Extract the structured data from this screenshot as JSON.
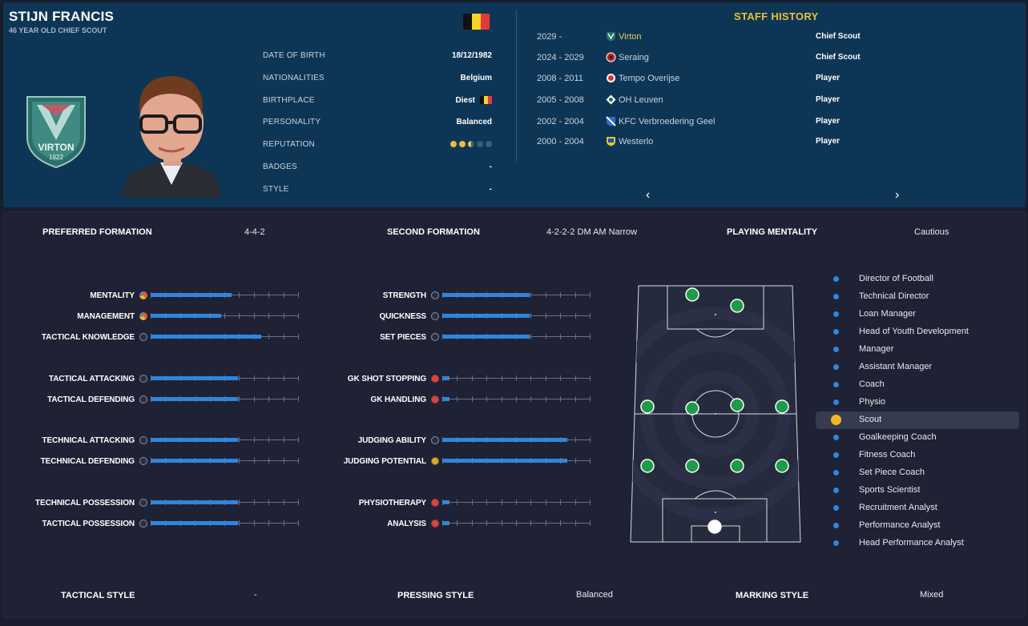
{
  "header": {
    "name": "STIJN FRANCIS",
    "subtitle": "46 YEAR OLD CHIEF SCOUT",
    "club_badge_text": "VIRTON",
    "club_badge_year": "1922",
    "info": [
      {
        "label": "DATE OF BIRTH",
        "value": "18/12/1982"
      },
      {
        "label": "NATIONALITIES",
        "value": "Belgium"
      },
      {
        "label": "BIRTHPLACE",
        "value": "Diest"
      },
      {
        "label": "PERSONALITY",
        "value": "Balanced"
      },
      {
        "label": "REPUTATION",
        "value": ""
      },
      {
        "label": "BADGES",
        "value": "-"
      },
      {
        "label": "STYLE",
        "value": "-"
      }
    ],
    "reputation_stars": 2.5
  },
  "staff_history": {
    "title": "STAFF HISTORY",
    "rows": [
      {
        "years": "2029 -",
        "club": "Virton",
        "role": "Chief Scout",
        "current": true
      },
      {
        "years": "2024 - 2029",
        "club": "Seraing",
        "role": "Chief Scout",
        "current": false
      },
      {
        "years": "2008 - 2011",
        "club": "Tempo Overijse",
        "role": "Player",
        "current": false
      },
      {
        "years": "2005 - 2008",
        "club": "OH Leuven",
        "role": "Player",
        "current": false
      },
      {
        "years": "2002 - 2004",
        "club": "KFC Verbroedering Geel",
        "role": "Player",
        "current": false
      },
      {
        "years": "2000 - 2004",
        "club": "Westerlo",
        "role": "Player",
        "current": false
      }
    ],
    "prev_arrow": "‹",
    "next_arrow": "›"
  },
  "formations": {
    "preferred_label": "PREFERRED FORMATION",
    "preferred_value": "4-4-2",
    "second_label": "SECOND FORMATION",
    "second_value": "4-2-2-2 DM AM Narrow",
    "mentality_label": "PLAYING MENTALITY",
    "mentality_value": "Cautious"
  },
  "attributes_left": [
    {
      "label": "MENTALITY",
      "value": 0.55,
      "icon": "pie-icon"
    },
    {
      "label": "MANAGEMENT",
      "value": 0.48,
      "icon": "pie-icon"
    },
    {
      "label": "TACTICAL KNOWLEDGE",
      "value": 0.75,
      "icon": "ball-icon"
    },
    {
      "label": "TACTICAL ATTACKING",
      "value": 0.59,
      "icon": "ball-icon"
    },
    {
      "label": "TACTICAL DEFENDING",
      "value": 0.59,
      "icon": "ball-icon"
    },
    {
      "label": "TECHNICAL ATTACKING",
      "value": 0.59,
      "icon": "ball-icon"
    },
    {
      "label": "TECHNICAL DEFENDING",
      "value": 0.59,
      "icon": "ball-icon"
    },
    {
      "label": "TECHNICAL POSSESSION",
      "value": 0.59,
      "icon": "ball-icon"
    },
    {
      "label": "TACTICAL POSSESSION",
      "value": 0.59,
      "icon": "ball-icon"
    }
  ],
  "attributes_mid": [
    {
      "label": "STRENGTH",
      "value": 0.59,
      "icon": "ball-icon"
    },
    {
      "label": "QUICKNESS",
      "value": 0.59,
      "icon": "ball-icon"
    },
    {
      "label": "SET PIECES",
      "value": 0.59,
      "icon": "ball-icon"
    },
    {
      "label": "GK SHOT STOPPING",
      "value": 0.05,
      "icon": "warning-icon"
    },
    {
      "label": "GK HANDLING",
      "value": 0.05,
      "icon": "warning-icon"
    },
    {
      "label": "JUDGING ABILITY",
      "value": 0.85,
      "icon": "ball-icon"
    },
    {
      "label": "JUDGING POTENTIAL",
      "value": 0.85,
      "icon": "ball-gold-icon"
    },
    {
      "label": "PHYSIOTHERAPY",
      "value": 0.05,
      "icon": "warning-icon"
    },
    {
      "label": "ANALYSIS",
      "value": 0.05,
      "icon": "warning-icon"
    }
  ],
  "positions": [
    {
      "label": "Director of Football",
      "active": false
    },
    {
      "label": "Technical Director",
      "active": false
    },
    {
      "label": "Loan Manager",
      "active": false
    },
    {
      "label": "Head of Youth Development",
      "active": false
    },
    {
      "label": "Manager",
      "active": false
    },
    {
      "label": "Assistant Manager",
      "active": false
    },
    {
      "label": "Coach",
      "active": false
    },
    {
      "label": "Physio",
      "active": false
    },
    {
      "label": "Scout",
      "active": true
    },
    {
      "label": "Goalkeeping Coach",
      "active": false
    },
    {
      "label": "Fitness Coach",
      "active": false
    },
    {
      "label": "Set Piece Coach",
      "active": false
    },
    {
      "label": "Sports Scientist",
      "active": false
    },
    {
      "label": "Recruitment Analyst",
      "active": false
    },
    {
      "label": "Performance Analyst",
      "active": false
    },
    {
      "label": "Head Performance Analyst",
      "active": false
    }
  ],
  "styles": {
    "tactical_label": "TACTICAL STYLE",
    "tactical_value": "-",
    "pressing_label": "PRESSING STYLE",
    "pressing_value": "Balanced",
    "marking_label": "MARKING STYLE",
    "marking_value": "Mixed"
  },
  "colors": {
    "header_bg": "#0d3656",
    "panel_bg": "#1f2234",
    "accent_gold": "#e8bf3a",
    "bar_blue": "#2f86de",
    "player_green": "#1f9a4a"
  }
}
